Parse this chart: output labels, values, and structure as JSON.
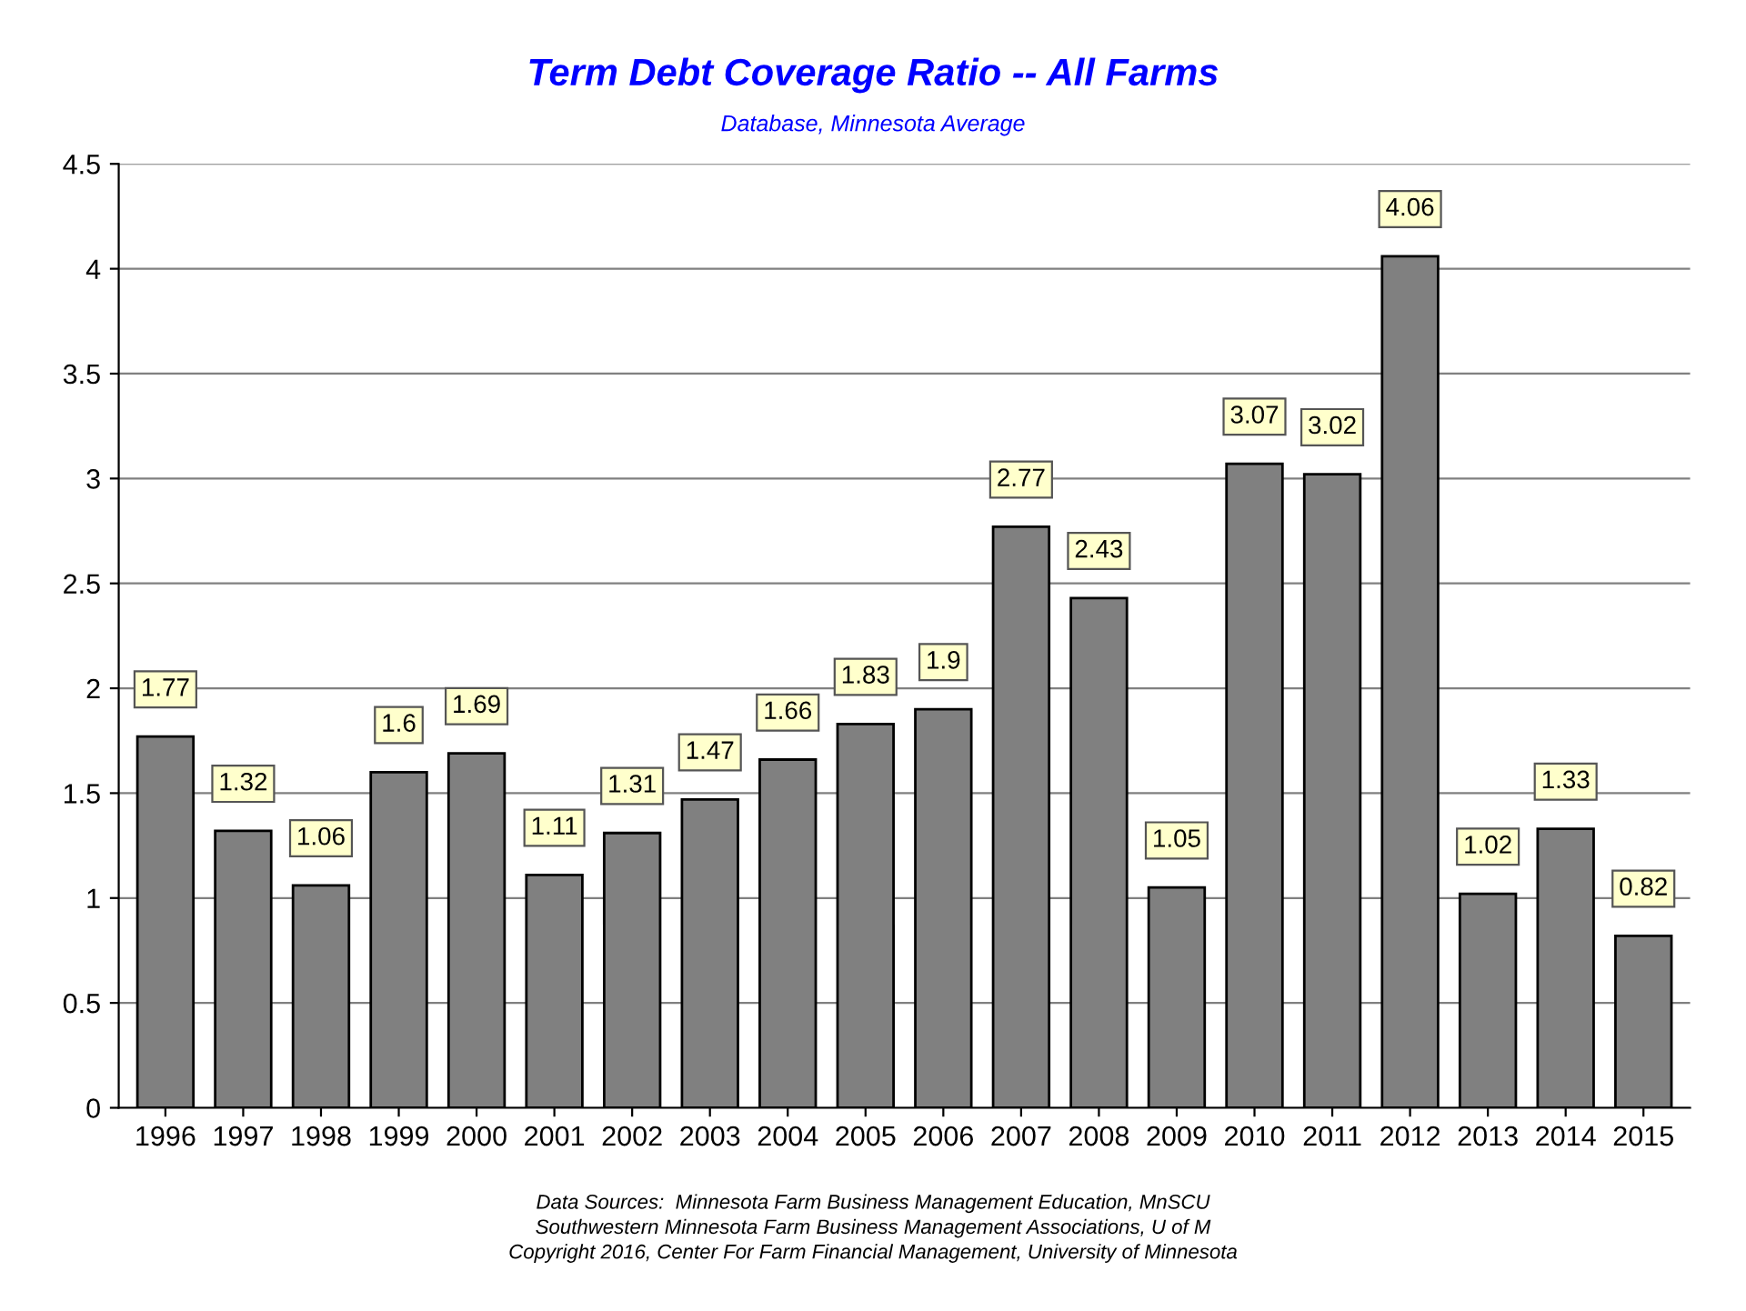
{
  "chart_data": {
    "type": "bar",
    "title": "Term Debt Coverage Ratio -- All Farms",
    "subtitle": "Database, Minnesota Average",
    "categories": [
      "1996",
      "1997",
      "1998",
      "1999",
      "2000",
      "2001",
      "2002",
      "2003",
      "2004",
      "2005",
      "2006",
      "2007",
      "2008",
      "2009",
      "2010",
      "2011",
      "2012",
      "2013",
      "2014",
      "2015"
    ],
    "values": [
      1.77,
      1.32,
      1.06,
      1.6,
      1.69,
      1.11,
      1.31,
      1.47,
      1.66,
      1.83,
      1.9,
      2.77,
      2.43,
      1.05,
      3.07,
      3.02,
      4.06,
      1.02,
      1.33,
      0.82
    ],
    "color": "#808080",
    "data_labels": true,
    "ylim": [
      0,
      4.5
    ],
    "yticks": [
      0,
      0.5,
      1,
      1.5,
      2,
      2.5,
      3,
      3.5,
      4,
      4.5
    ],
    "grid": "y",
    "annotations": [
      "Data Sources:  Minnesota Farm Business Management Education, MnSCU",
      "Southwestern Minnesota Farm Business Management Associations, U of M",
      "Copyright 2016, Center For Farm Financial Management, University of Minnesota"
    ]
  }
}
